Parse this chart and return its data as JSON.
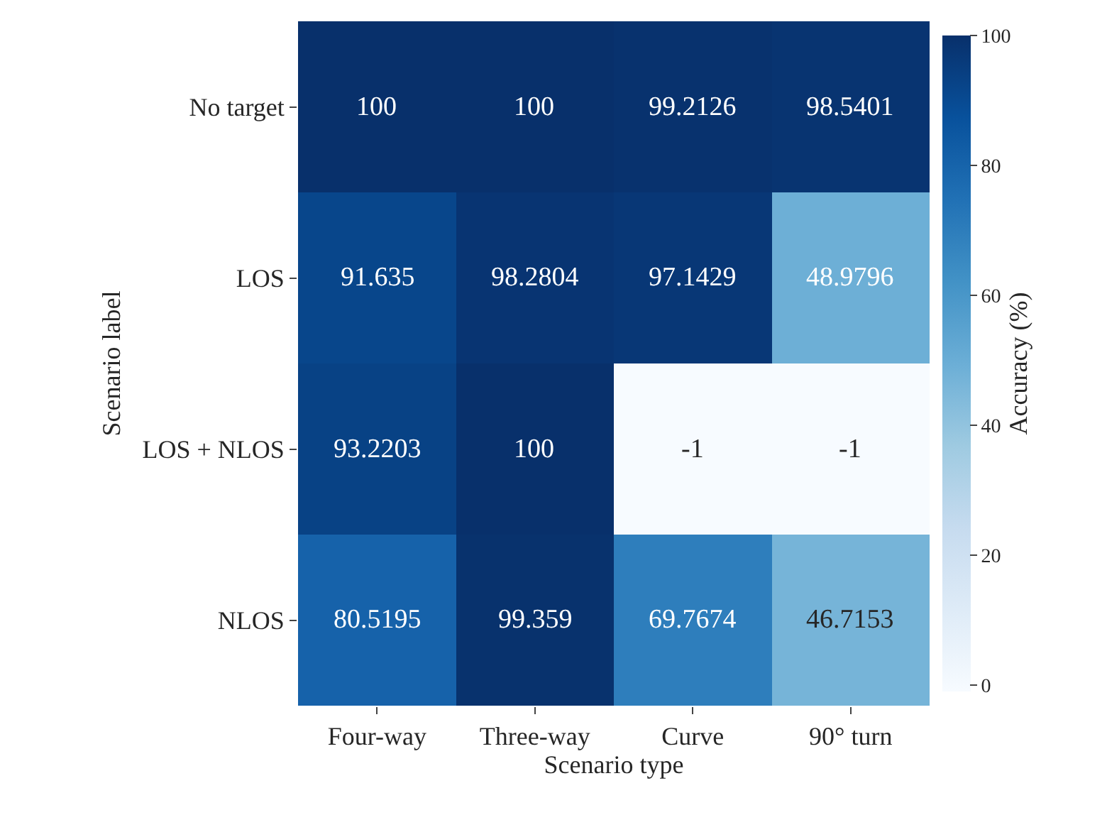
{
  "chart_data": {
    "type": "heatmap",
    "xlabel": "Scenario type",
    "ylabel": "Scenario label",
    "clabel": "Accuracy (%)",
    "categories": [
      "Four-way",
      "Three-way",
      "Curve",
      "90° turn"
    ],
    "y_categories": [
      "No target",
      "LOS",
      "LOS + NLOS",
      "NLOS"
    ],
    "cells": [
      [
        100,
        100,
        99.2126,
        98.5401
      ],
      [
        91.635,
        98.2804,
        97.1429,
        48.9796
      ],
      [
        93.2203,
        100,
        -1,
        -1
      ],
      [
        80.5195,
        99.359,
        69.7674,
        46.7153
      ]
    ],
    "clim": [
      -1,
      100
    ],
    "cticks": [
      0,
      20,
      40,
      60,
      80,
      100
    ],
    "data_labels": true
  }
}
